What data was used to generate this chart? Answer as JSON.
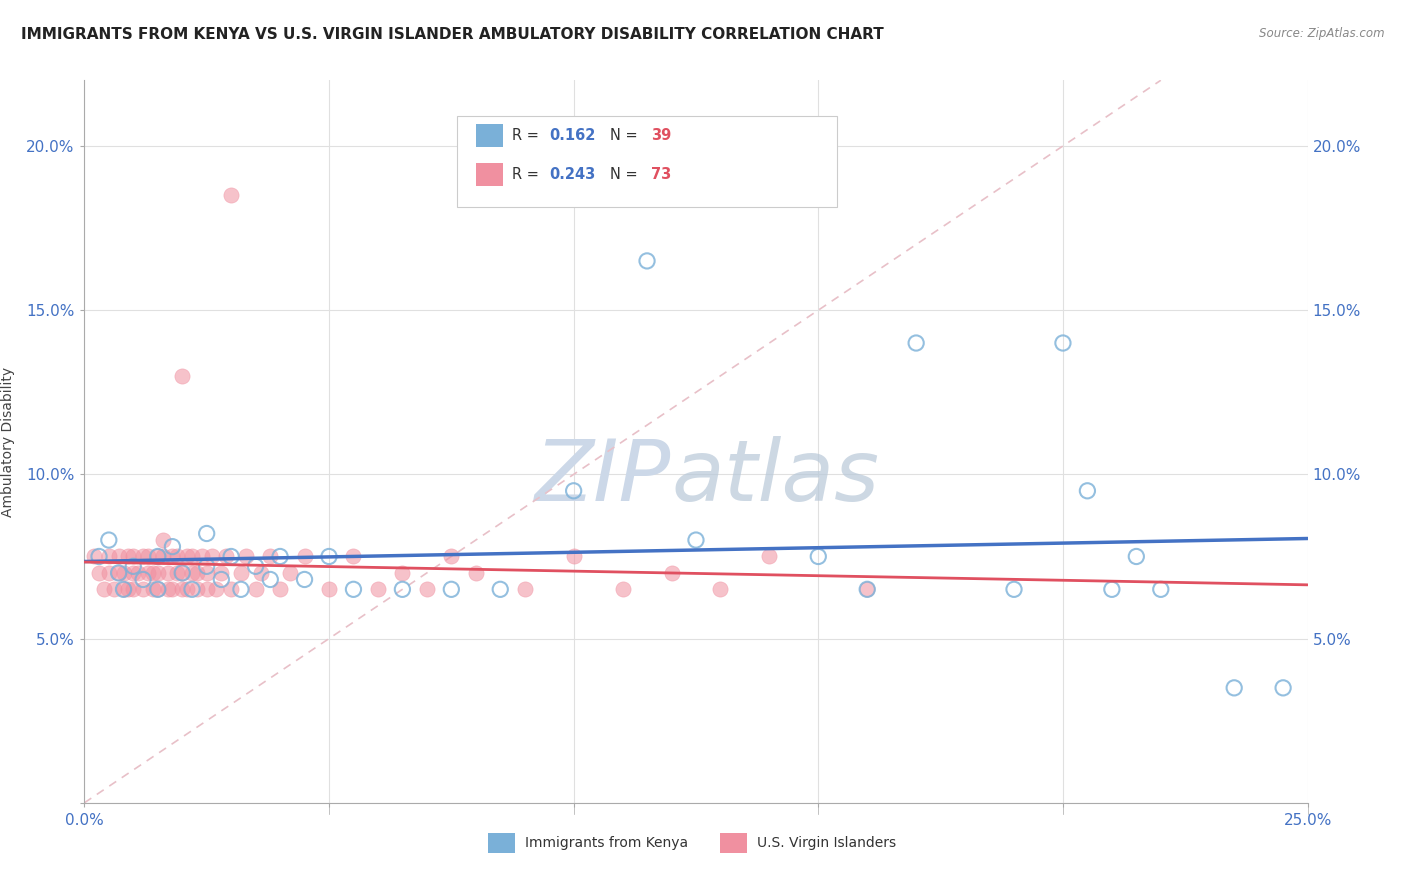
{
  "title": "IMMIGRANTS FROM KENYA VS U.S. VIRGIN ISLANDER AMBULATORY DISABILITY CORRELATION CHART",
  "source": "Source: ZipAtlas.com",
  "ylabel": "Ambulatory Disability",
  "xlim": [
    0.0,
    0.25
  ],
  "ylim": [
    0.0,
    0.22
  ],
  "watermark_zip": "ZIP",
  "watermark_atlas": "atlas",
  "watermark_color_zip": "#ccd8e8",
  "watermark_color_atlas": "#c8d4e4",
  "series1_color": "#7ab0d8",
  "series2_color": "#f090a0",
  "series1_line_color": "#4472c4",
  "series2_line_color": "#e05060",
  "ref_line_color": "#e8c0c8",
  "legend_box_color": "#cccccc",
  "R1_text": "R = 0.162",
  "N1_text": "N = 39",
  "R2_text": "R = 0.243",
  "N2_text": "N = 73",
  "R1_color": "#4472c4",
  "N1_color": "#e05060",
  "R2_color": "#4472c4",
  "N2_color": "#e05060",
  "tick_color": "#4472c4",
  "grid_color": "#e0e0e0",
  "ylabel_color": "#444444",
  "title_color": "#222222",
  "source_color": "#888888",
  "bottom_legend_label1": "Immigrants from Kenya",
  "bottom_legend_label2": "U.S. Virgin Islanders"
}
